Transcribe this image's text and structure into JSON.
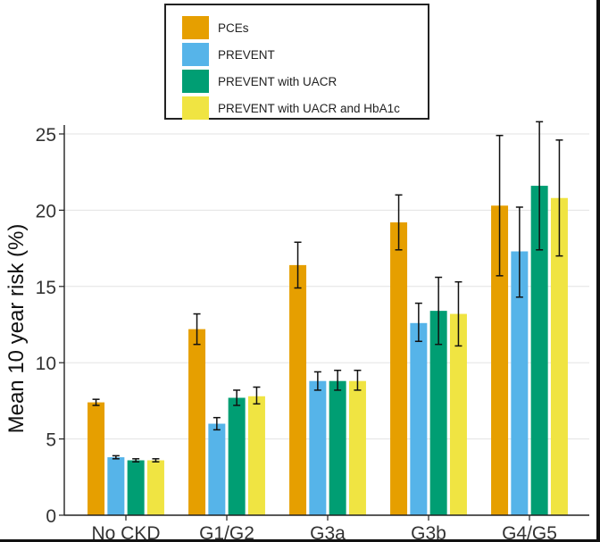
{
  "chart_data": {
    "type": "bar",
    "title": "",
    "xlabel": "",
    "ylabel": "Mean 10 year risk (%)",
    "ylim": [
      0,
      26
    ],
    "yticks": [
      0,
      5,
      10,
      15,
      20,
      25
    ],
    "grid": true,
    "legend_position": "top",
    "categories": [
      "No CKD",
      "G1/G2",
      "G3a",
      "G3b",
      "G4/G5"
    ],
    "series": [
      {
        "name": "PCEs",
        "color": "#E69F00",
        "values": [
          7.4,
          12.2,
          16.4,
          19.2,
          20.3
        ],
        "error_low": [
          7.2,
          11.2,
          14.9,
          17.4,
          15.7
        ],
        "error_high": [
          7.6,
          13.2,
          17.9,
          21.0,
          24.9
        ]
      },
      {
        "name": "PREVENT",
        "color": "#56B4E9",
        "values": [
          3.8,
          6.0,
          8.8,
          12.6,
          17.3
        ],
        "error_low": [
          3.7,
          5.6,
          8.2,
          11.4,
          14.3
        ],
        "error_high": [
          3.9,
          6.4,
          9.4,
          13.9,
          20.2
        ]
      },
      {
        "name": "PREVENT with UACR",
        "color": "#009E73",
        "values": [
          3.6,
          7.7,
          8.8,
          13.4,
          21.6
        ],
        "error_low": [
          3.5,
          7.2,
          8.2,
          11.2,
          17.4
        ],
        "error_high": [
          3.7,
          8.2,
          9.5,
          15.6,
          25.8
        ]
      },
      {
        "name": "PREVENT with UACR and HbA1c",
        "color": "#F0E442",
        "values": [
          3.6,
          7.8,
          8.8,
          13.2,
          20.8
        ],
        "error_low": [
          3.5,
          7.3,
          8.2,
          11.1,
          17.0
        ],
        "error_high": [
          3.7,
          8.4,
          9.5,
          15.3,
          24.6
        ]
      }
    ]
  }
}
